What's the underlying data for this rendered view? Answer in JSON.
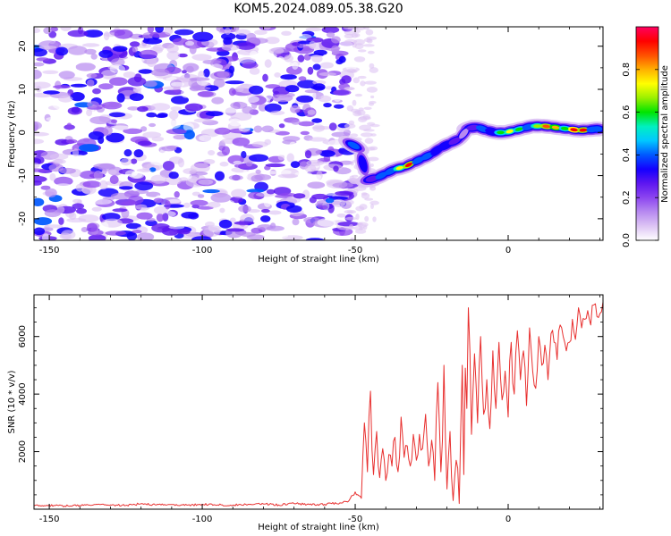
{
  "title": "KOM5.2024.089.05.38.G20",
  "chart_data": [
    {
      "type": "heatmap",
      "xlabel": "Height of straight line (km)",
      "ylabel": "Frequency (Hz)",
      "xlim": [
        -155,
        31
      ],
      "ylim": [
        -25,
        24.5
      ],
      "xticks": [
        -150,
        -100,
        -50,
        0
      ],
      "yticks": [
        -20,
        -10,
        0,
        10,
        20
      ],
      "colorbar": {
        "label": "Normalized spectral amplitude",
        "range": [
          0,
          1
        ],
        "ticks": [
          0.0,
          0.2,
          0.4,
          0.6,
          0.8
        ],
        "colors": [
          "#ffffff",
          "#ddc4f4",
          "#b78af0",
          "#8c45f0",
          "#5d16f0",
          "#1400ff",
          "#0058ff",
          "#00c8ff",
          "#00f0c0",
          "#00e400",
          "#9af000",
          "#ffff00",
          "#ffb000",
          "#ff5000",
          "#ff0000",
          "#ff0060"
        ]
      },
      "noise_region": {
        "x": [
          -155,
          -51
        ],
        "y": [
          -25,
          24.5
        ],
        "amplitude_range": [
          0.02,
          0.38
        ]
      },
      "signal_track": [
        {
          "x": -52,
          "y": -2.5,
          "amplitude": 0.5
        },
        {
          "x": -49,
          "y": -3.5,
          "amplitude": 0.45
        },
        {
          "x": -46,
          "y": -11.0,
          "amplitude": 0.32
        },
        {
          "x": -43,
          "y": -10.5,
          "amplitude": 0.5
        },
        {
          "x": -40,
          "y": -9.5,
          "amplitude": 0.55
        },
        {
          "x": -37,
          "y": -8.5,
          "amplitude": 0.72
        },
        {
          "x": -34,
          "y": -8.0,
          "amplitude": 0.92
        },
        {
          "x": -31,
          "y": -7.0,
          "amplitude": 0.55
        },
        {
          "x": -28,
          "y": -6.0,
          "amplitude": 0.5
        },
        {
          "x": -25,
          "y": -5.0,
          "amplitude": 0.45
        },
        {
          "x": -22,
          "y": -3.5,
          "amplitude": 0.42
        },
        {
          "x": -19,
          "y": -2.5,
          "amplitude": 0.35
        },
        {
          "x": -16,
          "y": -1.5,
          "amplitude": 0.22
        },
        {
          "x": -13,
          "y": 1.0,
          "amplitude": 0.35
        },
        {
          "x": -10,
          "y": 1.2,
          "amplitude": 0.5
        },
        {
          "x": -7,
          "y": 0.5,
          "amplitude": 0.45
        },
        {
          "x": -4,
          "y": 0.0,
          "amplitude": 0.6
        },
        {
          "x": -1,
          "y": 0.0,
          "amplitude": 0.72
        },
        {
          "x": 2,
          "y": 0.5,
          "amplitude": 0.62
        },
        {
          "x": 5,
          "y": 1.0,
          "amplitude": 0.55
        },
        {
          "x": 8,
          "y": 1.5,
          "amplitude": 0.68
        },
        {
          "x": 11,
          "y": 1.5,
          "amplitude": 0.85
        },
        {
          "x": 14,
          "y": 1.3,
          "amplitude": 0.82
        },
        {
          "x": 17,
          "y": 1.0,
          "amplitude": 0.6
        },
        {
          "x": 20,
          "y": 0.8,
          "amplitude": 0.96
        },
        {
          "x": 23,
          "y": 0.5,
          "amplitude": 0.9
        },
        {
          "x": 26,
          "y": 0.6,
          "amplitude": 0.55
        },
        {
          "x": 29,
          "y": 0.8,
          "amplitude": 0.5
        }
      ]
    },
    {
      "type": "line",
      "xlabel": "Height of straight line (km)",
      "ylabel": "SNR (10 * v/v)",
      "xlim": [
        -155,
        31
      ],
      "ylim": [
        0,
        7450
      ],
      "xticks": [
        -150,
        -100,
        -50,
        0
      ],
      "yticks": [
        2000,
        4000,
        6000
      ],
      "series": [
        {
          "color": "#e8302f",
          "x": [
            -155,
            -150,
            -145,
            -140,
            -135,
            -130,
            -125,
            -120,
            -115,
            -110,
            -105,
            -100,
            -95,
            -90,
            -85,
            -80,
            -75,
            -70,
            -65,
            -60,
            -55,
            -52,
            -50,
            -48,
            -47,
            -46,
            -45,
            -44,
            -43,
            -42,
            -41,
            -40,
            -39,
            -38,
            -37,
            -36,
            -35,
            -34,
            -33,
            -32,
            -31,
            -30,
            -29,
            -28,
            -27,
            -26,
            -25,
            -24,
            -23,
            -22,
            -21,
            -20,
            -19,
            -18,
            -17,
            -16,
            -15,
            -14.5,
            -14,
            -13.5,
            -13,
            -12,
            -11,
            -10,
            -9,
            -8,
            -7,
            -6,
            -5,
            -4,
            -3,
            -2,
            -1,
            0,
            1,
            2,
            3,
            4,
            5,
            6,
            7,
            8,
            9,
            10,
            11,
            12,
            13,
            14,
            15,
            16,
            17,
            18,
            19,
            20,
            21,
            22,
            23,
            24,
            25,
            26,
            27,
            28,
            29,
            30,
            31
          ],
          "y": [
            120,
            140,
            110,
            130,
            160,
            150,
            130,
            190,
            150,
            160,
            140,
            170,
            150,
            140,
            170,
            180,
            150,
            200,
            160,
            170,
            220,
            300,
            600,
            380,
            3000,
            1300,
            4100,
            1200,
            2700,
            1100,
            2100,
            1000,
            1900,
            1500,
            2500,
            1300,
            3200,
            1800,
            2200,
            1500,
            2600,
            1700,
            2600,
            2100,
            3300,
            1500,
            2400,
            1000,
            4400,
            1300,
            5000,
            700,
            2700,
            300,
            1700,
            200,
            5000,
            1200,
            4900,
            3500,
            7000,
            2600,
            5400,
            3000,
            6000,
            3300,
            4500,
            2800,
            5500,
            3500,
            5800,
            3800,
            4800,
            3200,
            5800,
            4000,
            6200,
            4500,
            5500,
            3600,
            6300,
            4800,
            4200,
            6000,
            5000,
            5700,
            4500,
            6100,
            5800,
            5200,
            6400,
            6000,
            5500,
            5800,
            6600,
            5900,
            7000,
            6300,
            6600,
            6900,
            6400,
            7100,
            6700,
            6800,
            7200
          ]
        }
      ]
    }
  ]
}
